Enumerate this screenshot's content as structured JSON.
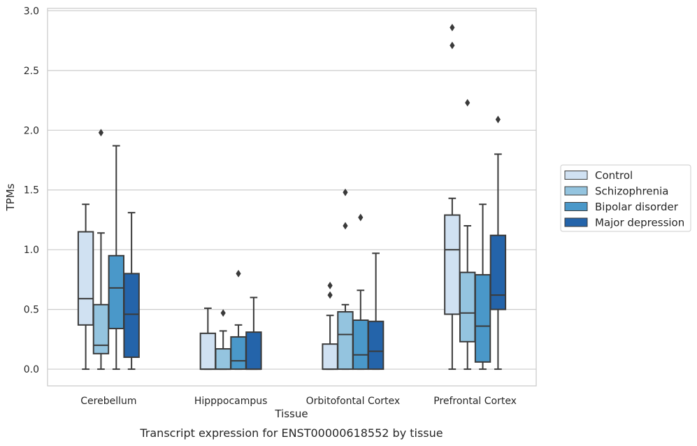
{
  "chart_data": {
    "type": "boxplot",
    "xlabel": "Tissue",
    "ylabel": "TPMs",
    "caption": "Transcript expression for ENST00000618552 by tissue",
    "ylim": [
      -0.14,
      3.02
    ],
    "yticks": [
      "0.0",
      "0.5",
      "1.0",
      "1.5",
      "2.0",
      "2.5",
      "3.0"
    ],
    "grid": "horizontal",
    "legend_position": "right",
    "categories": [
      "Cerebellum",
      "Hipppocampus",
      "Orbitofontal Cortex",
      "Prefrontal Cortex"
    ],
    "series": [
      {
        "name": "Control",
        "color": "#d0e1f2",
        "boxes": [
          {
            "whislo": 0.0,
            "q1": 0.37,
            "med": 0.59,
            "q3": 1.15,
            "whishi": 1.38,
            "fliers": []
          },
          {
            "whislo": 0.0,
            "q1": 0.0,
            "med": 0.0,
            "q3": 0.3,
            "whishi": 0.51,
            "fliers": []
          },
          {
            "whislo": 0.0,
            "q1": 0.0,
            "med": 0.0,
            "q3": 0.21,
            "whishi": 0.45,
            "fliers": [
              0.62,
              0.7
            ]
          },
          {
            "whislo": 0.0,
            "q1": 0.46,
            "med": 1.0,
            "q3": 1.29,
            "whishi": 1.43,
            "fliers": [
              2.71,
              2.86
            ]
          }
        ]
      },
      {
        "name": "Schizophrenia",
        "color": "#94c4df",
        "boxes": [
          {
            "whislo": 0.0,
            "q1": 0.13,
            "med": 0.2,
            "q3": 0.54,
            "whishi": 1.14,
            "fliers": [
              1.98
            ]
          },
          {
            "whislo": 0.0,
            "q1": 0.0,
            "med": 0.0,
            "q3": 0.17,
            "whishi": 0.32,
            "fliers": [
              0.47
            ]
          },
          {
            "whislo": 0.0,
            "q1": 0.0,
            "med": 0.29,
            "q3": 0.48,
            "whishi": 0.54,
            "fliers": [
              1.2,
              1.48
            ]
          },
          {
            "whislo": 0.0,
            "q1": 0.23,
            "med": 0.47,
            "q3": 0.81,
            "whishi": 1.2,
            "fliers": [
              2.23
            ]
          }
        ]
      },
      {
        "name": "Bipolar disorder",
        "color": "#4a98c9",
        "boxes": [
          {
            "whislo": 0.0,
            "q1": 0.34,
            "med": 0.68,
            "q3": 0.95,
            "whishi": 1.87,
            "fliers": []
          },
          {
            "whislo": 0.0,
            "q1": 0.0,
            "med": 0.07,
            "q3": 0.27,
            "whishi": 0.37,
            "fliers": [
              0.8
            ]
          },
          {
            "whislo": 0.0,
            "q1": 0.0,
            "med": 0.12,
            "q3": 0.41,
            "whishi": 0.66,
            "fliers": [
              1.27
            ]
          },
          {
            "whislo": 0.0,
            "q1": 0.06,
            "med": 0.36,
            "q3": 0.79,
            "whishi": 1.38,
            "fliers": []
          }
        ]
      },
      {
        "name": "Major depression",
        "color": "#2464aa",
        "boxes": [
          {
            "whislo": 0.0,
            "q1": 0.1,
            "med": 0.46,
            "q3": 0.8,
            "whishi": 1.31,
            "fliers": []
          },
          {
            "whislo": 0.0,
            "q1": 0.0,
            "med": 0.0,
            "q3": 0.31,
            "whishi": 0.6,
            "fliers": []
          },
          {
            "whislo": 0.0,
            "q1": 0.0,
            "med": 0.15,
            "q3": 0.4,
            "whishi": 0.97,
            "fliers": []
          },
          {
            "whislo": 0.0,
            "q1": 0.5,
            "med": 0.62,
            "q3": 1.12,
            "whishi": 1.8,
            "fliers": [
              2.09
            ]
          }
        ]
      }
    ]
  }
}
